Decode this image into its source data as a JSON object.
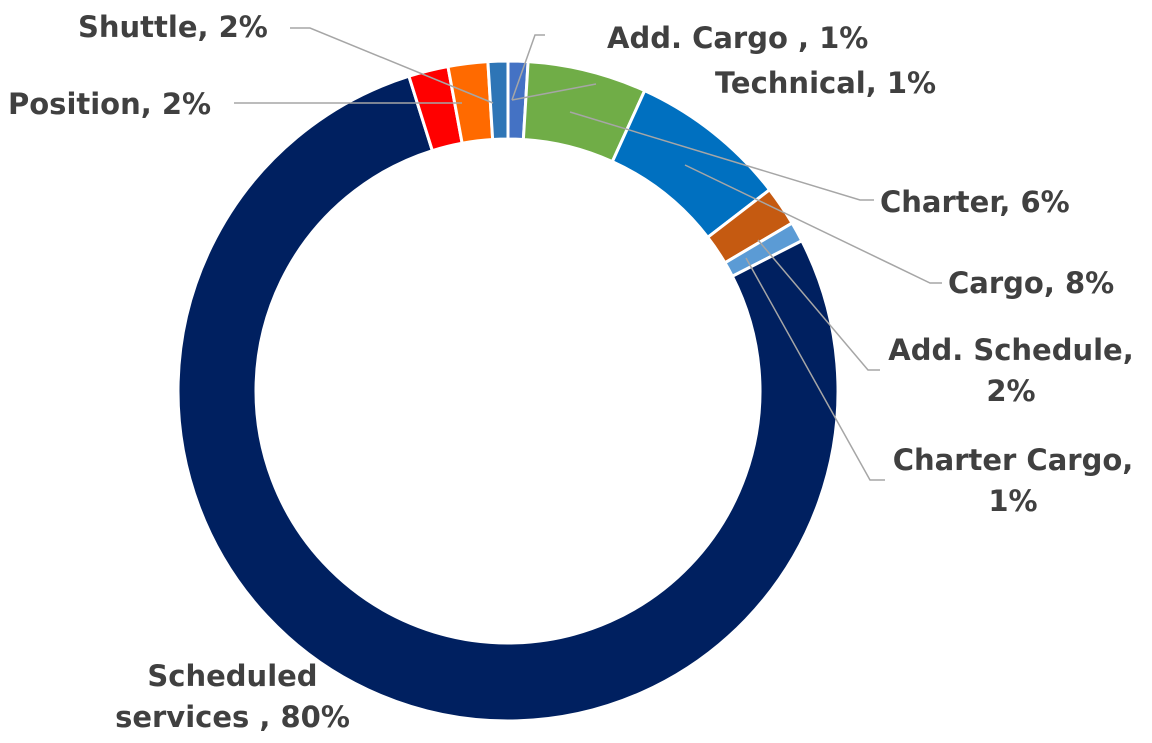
{
  "chart_data": {
    "type": "donut",
    "values": [
      1,
      6,
      8,
      2,
      1,
      80,
      2,
      2,
      1
    ],
    "value_labels": [
      "Add. Cargo , 1%",
      "Charter, 6%",
      "Cargo, 8%",
      "Add. Schedule, 2%",
      "Charter Cargo, 1%",
      "Scheduled services , 80%",
      "Position, 2%",
      "Shuttle, 2%",
      "Technical, 1%"
    ],
    "colors": [
      "#4472c4",
      "#70ad47",
      "#0070c0",
      "#c55a11",
      "#5b9bd5",
      "#002060",
      "#ff0000",
      "#ff6a00",
      "#2e75b6"
    ]
  }
}
